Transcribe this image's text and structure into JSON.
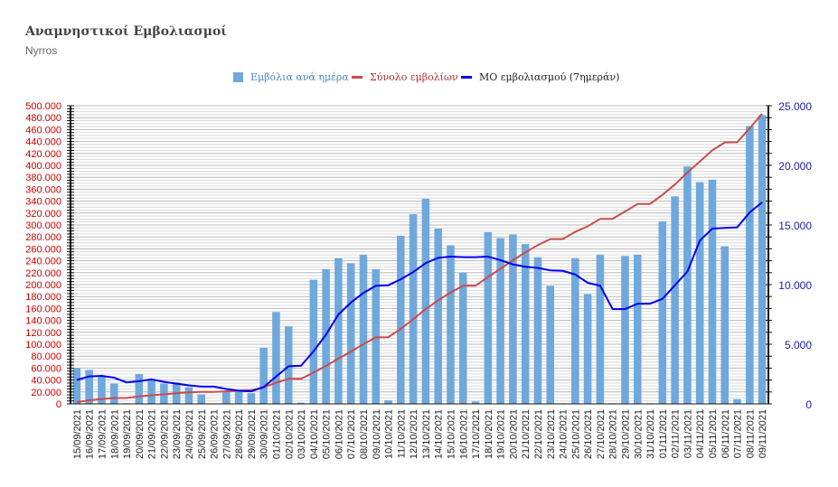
{
  "title": "Αναμνηστικοί Εμβολιασμοί",
  "subtitle": "Nyrros",
  "legend": {
    "bars": "Εμβόλια ανά ημέρα",
    "total": "Σύνολο εμβολίων",
    "avg": "ΜΟ εμβολιασμού (7ημεράν)"
  },
  "colors": {
    "bars": "#6fa8dc",
    "total": "#cc4b4b",
    "avg": "#0000ee",
    "leftAxis": "#cc0000",
    "rightAxis": "#1c1caa"
  },
  "chart_data": {
    "type": "bar",
    "categories": [
      "15/09/2021",
      "16/09/2021",
      "17/09/2021",
      "18/09/2021",
      "19/09/2021",
      "20/09/2021",
      "21/09/2021",
      "22/09/2021",
      "23/09/2021",
      "24/09/2021",
      "25/09/2021",
      "26/09/2021",
      "27/09/2021",
      "28/09/2021",
      "29/09/2021",
      "30/09/2021",
      "01/10/2021",
      "02/10/2021",
      "03/10/2021",
      "04/10/2021",
      "05/10/2021",
      "06/10/2021",
      "07/10/2021",
      "08/10/2021",
      "09/10/2021",
      "10/10/2021",
      "11/10/2021",
      "12/10/2021",
      "13/10/2021",
      "14/10/2021",
      "15/10/2021",
      "16/10/2021",
      "17/10/2021",
      "18/10/2021",
      "19/10/2021",
      "20/10/2021",
      "21/10/2021",
      "22/10/2021",
      "23/10/2021",
      "24/10/2021",
      "25/10/2021",
      "26/10/2021",
      "27/10/2021",
      "28/10/2021",
      "29/10/2021",
      "30/10/2021",
      "31/10/2021",
      "01/11/2021",
      "02/11/2021",
      "03/11/2021",
      "04/11/2021",
      "05/11/2021",
      "06/11/2021",
      "07/11/2021",
      "08/11/2021",
      "09/11/2021"
    ],
    "series": [
      {
        "name": "Εμβόλια ανά ημέρα",
        "axis": "right",
        "type": "bar",
        "values": [
          3000,
          2850,
          2300,
          1700,
          50,
          2500,
          2000,
          1700,
          1800,
          1400,
          800,
          0,
          1000,
          1000,
          900,
          4700,
          7700,
          6500,
          100,
          10400,
          11300,
          12200,
          11800,
          12500,
          11300,
          300,
          14100,
          15900,
          17200,
          14700,
          13300,
          11000,
          200,
          14400,
          13900,
          14200,
          13400,
          12300,
          9900,
          50,
          12200,
          9200,
          12500,
          50,
          12400,
          12500,
          50,
          15300,
          17400,
          19900,
          18600,
          18800,
          13200,
          400,
          23300,
          24200
        ]
      },
      {
        "name": "Σύνολο εμβολίων",
        "axis": "left",
        "type": "line",
        "values": [
          3000,
          5850,
          8150,
          9850,
          9900,
          12400,
          14400,
          16100,
          17900,
          19300,
          20100,
          20100,
          21100,
          22100,
          23000,
          27700,
          35400,
          41900,
          42000,
          52400,
          63700,
          75900,
          87700,
          100200,
          111500,
          111800,
          125900,
          141800,
          159000,
          173700,
          187000,
          198000,
          198200,
          212600,
          226500,
          240700,
          254100,
          266400,
          276300,
          276350,
          288550,
          297750,
          310250,
          310300,
          322700,
          335200,
          335250,
          350550,
          367950,
          387850,
          406450,
          425250,
          438450,
          438850,
          462150,
          486350
        ]
      },
      {
        "name": "ΜΟ εμβολιασμού (7ημεράν)",
        "axis": "right",
        "type": "line",
        "values": [
          2000,
          2300,
          2350,
          2200,
          1800,
          1900,
          2050,
          1850,
          1700,
          1550,
          1450,
          1450,
          1250,
          1100,
          1050,
          1400,
          2300,
          3150,
          3200,
          4400,
          5800,
          7500,
          8500,
          9300,
          9900,
          9950,
          10450,
          11050,
          11800,
          12250,
          12350,
          12300,
          12300,
          12350,
          12050,
          11700,
          11500,
          11400,
          11200,
          11150,
          10850,
          10150,
          9900,
          7950,
          7950,
          8400,
          8400,
          8800,
          9950,
          11100,
          13700,
          14700,
          14750,
          14800,
          16050,
          16900
        ]
      }
    ],
    "left_axis": {
      "ylim": [
        0,
        500000
      ],
      "ticks": [
        "0",
        "20.000",
        "40.000",
        "60.000",
        "80.000",
        "100.000",
        "120.000",
        "140.000",
        "160.000",
        "180.000",
        "200.000",
        "220.000",
        "240.000",
        "260.000",
        "280.000",
        "300.000",
        "320.000",
        "340.000",
        "360.000",
        "380.000",
        "400.000",
        "420.000",
        "440.000",
        "460.000",
        "480.000",
        "500.000"
      ]
    },
    "right_axis": {
      "ylim": [
        0,
        25000
      ],
      "ticks": [
        "0",
        "5.000",
        "10.000",
        "15.000",
        "20.000",
        "25.000"
      ]
    },
    "grid": true,
    "legend_position": "top"
  }
}
